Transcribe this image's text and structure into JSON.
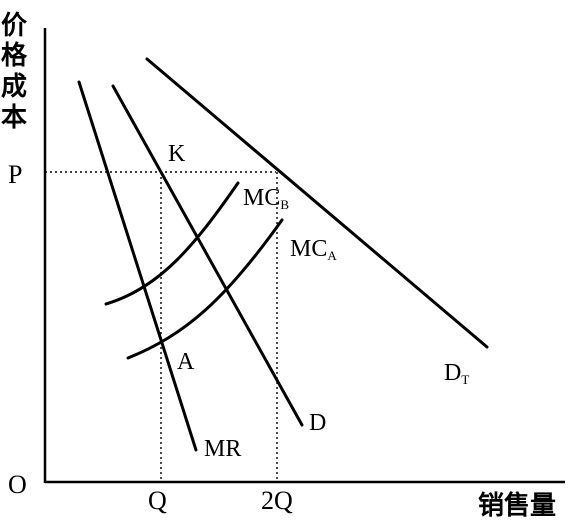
{
  "y_axis_title": [
    "价",
    "格",
    "成",
    "本"
  ],
  "x_axis_title": "销售量",
  "origin_label": "O",
  "price_label": "P",
  "x_ticks": {
    "q": "Q",
    "two_q": "2Q"
  },
  "points": {
    "k": "K",
    "a": "A"
  },
  "curves": {
    "mr": "MR",
    "d": "D",
    "dt": {
      "main": "D",
      "sub": "T"
    },
    "mca": {
      "main": "MC",
      "sub": "A"
    },
    "mcb": {
      "main": "MC",
      "sub": "B"
    }
  }
}
